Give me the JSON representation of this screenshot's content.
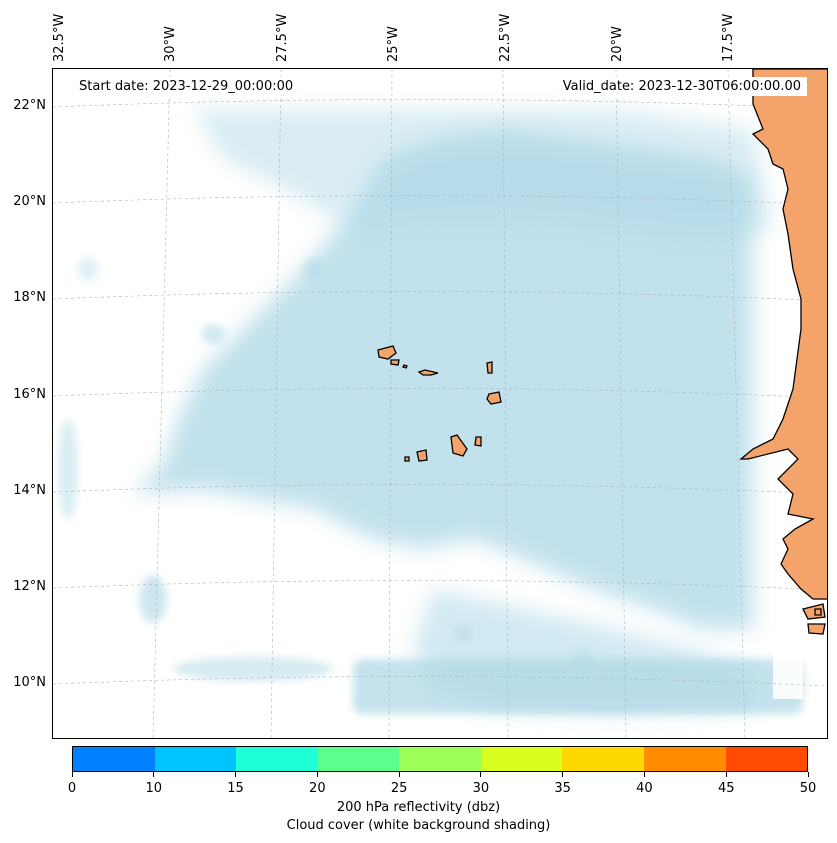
{
  "map": {
    "start_date": "Start date: 2023-12-29_00:00:00",
    "valid_date": "Valid_date: 2023-12-30T06:00:00.00",
    "lon_labels": [
      "32.5°W",
      "30°W",
      "27.5°W",
      "25°W",
      "22.5°W",
      "20°W",
      "17.5°W"
    ],
    "lat_labels": [
      "22°N",
      "20°N",
      "18°N",
      "16°N",
      "14°N",
      "12°N",
      "10°N"
    ],
    "cloud_color": "#add8e6",
    "land_color": "#f4a46a",
    "grid_color": "#b0b0b0"
  },
  "colorbar": {
    "ticks": [
      "0",
      "10",
      "15",
      "20",
      "25",
      "30",
      "35",
      "40",
      "45",
      "50"
    ],
    "colors": [
      "#0080ff",
      "#00c4ff",
      "#1effd8",
      "#5cff8c",
      "#9bff57",
      "#d8ff1e",
      "#ffd800",
      "#ff8c00",
      "#ff4c00"
    ],
    "title_line1": "200 hPa reflectivity (dbz)",
    "title_line2": "Cloud cover (white background shading)"
  }
}
